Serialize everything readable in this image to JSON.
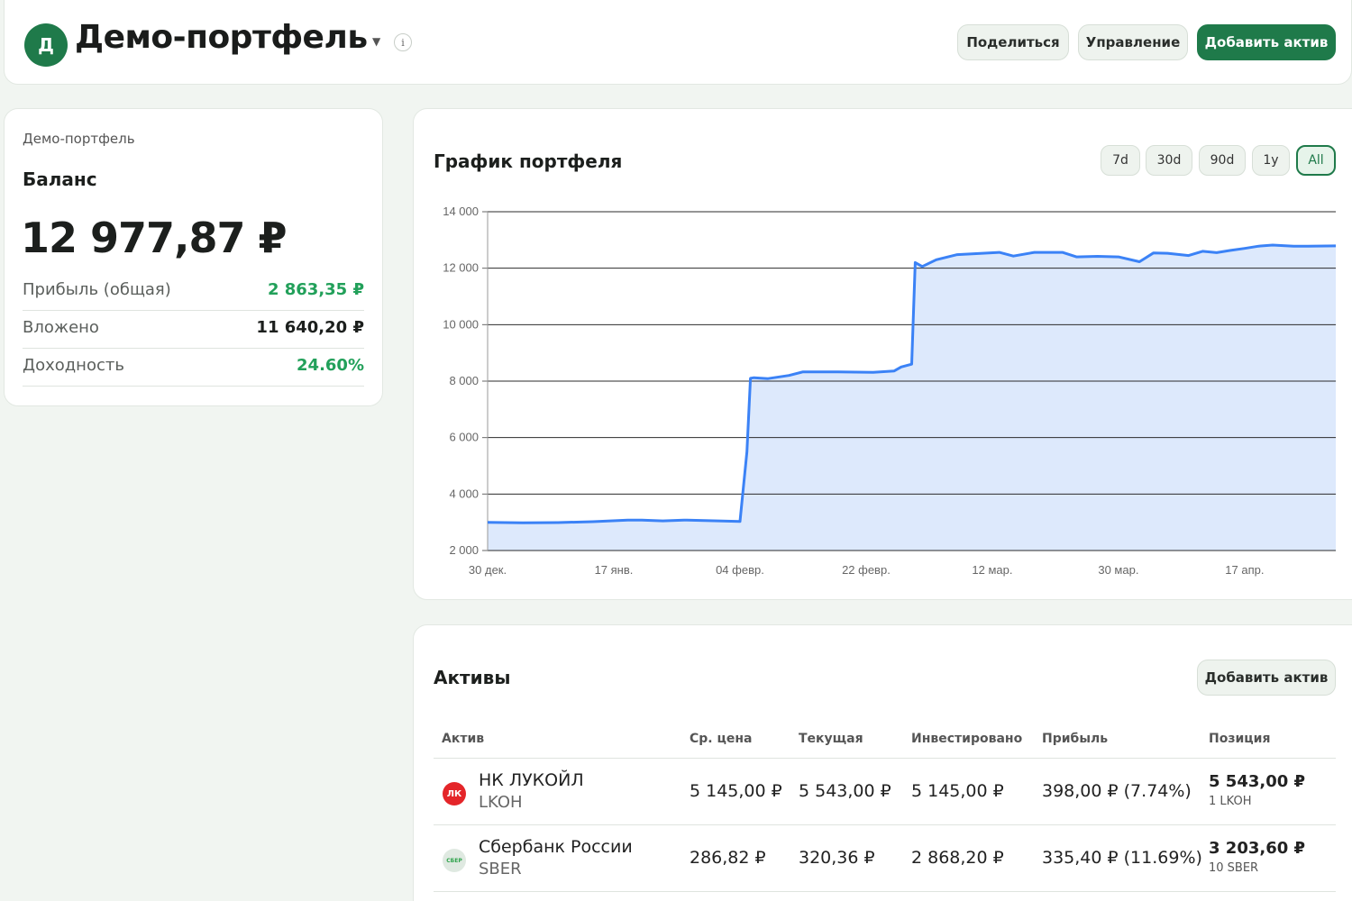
{
  "header": {
    "avatar_letter": "Д",
    "title": "Демо-портфель",
    "caret": "▼",
    "info": "i",
    "share_label": "Поделиться",
    "manage_label": "Управление",
    "add_asset_label": "Добавить актив"
  },
  "balance": {
    "portfolio_name": "Демо-портфель",
    "label": "Баланс",
    "value": "12 977,87 ₽",
    "rows": [
      {
        "label": "Прибыль (общая)",
        "value": "2 863,35 ₽",
        "color": "#22a05a"
      },
      {
        "label": "Вложено",
        "value": "11 640,20 ₽",
        "color": "#1c1f1d"
      },
      {
        "label": "Доходность",
        "value": "24.60%",
        "color": "#22a05a"
      }
    ]
  },
  "chart_section": {
    "title": "График портфеля",
    "ranges": [
      "7d",
      "30d",
      "90d",
      "1y",
      "All"
    ],
    "active_range": "All"
  },
  "chart_data": {
    "type": "area",
    "title": "График портфеля",
    "xlabel": "",
    "ylabel": "",
    "ylim": [
      2000,
      14000
    ],
    "yticks": [
      2000,
      4000,
      6000,
      8000,
      10000,
      12000,
      14000
    ],
    "ytick_labels": [
      "2 000",
      "4 000",
      "6 000",
      "8 000",
      "10 000",
      "12 000",
      "14 000"
    ],
    "xticks": [
      "30 дек.",
      "17 янв.",
      "04 февр.",
      "22 февр.",
      "12 мар.",
      "30 мар.",
      "17 апр."
    ],
    "x_tick_days": [
      0,
      18,
      36,
      54,
      72,
      90,
      108
    ],
    "grid": true,
    "color": "#3b82f6",
    "fill": "#dde9fc",
    "x_days": [
      0,
      5,
      10,
      15,
      20,
      22,
      25,
      28,
      31,
      36,
      37,
      37.5,
      38,
      40,
      43,
      45,
      50,
      55,
      58,
      59,
      60.5,
      61,
      62,
      64,
      67,
      70,
      73,
      75,
      78,
      82,
      84,
      87,
      90,
      93,
      95,
      97,
      100,
      102,
      104,
      106,
      108,
      110,
      112,
      115,
      117,
      121
    ],
    "values": [
      3000,
      2980,
      2990,
      3020,
      3080,
      3080,
      3050,
      3080,
      3060,
      3030,
      5500,
      8100,
      8120,
      8090,
      8200,
      8330,
      8330,
      8310,
      8360,
      8500,
      8600,
      12200,
      12060,
      12300,
      12480,
      12520,
      12560,
      12430,
      12560,
      12560,
      12400,
      12420,
      12400,
      12230,
      12540,
      12530,
      12450,
      12600,
      12550,
      12630,
      12700,
      12780,
      12820,
      12780,
      12780,
      12790
    ]
  },
  "assets": {
    "title": "Активы",
    "add_label": "Добавить актив",
    "columns": [
      "Актив",
      "Ср. цена",
      "Текущая",
      "Инвестировано",
      "Прибыль",
      "Позиция"
    ],
    "rows": [
      {
        "logo_text": "ЛК",
        "logo_icon": "lukoil-logo",
        "name": "НК ЛУКОЙЛ",
        "ticker": "LKOH",
        "avg_price": "5 145,00 ₽",
        "current": "5 543,00 ₽",
        "invested": "5 145,00 ₽",
        "profit": "398,00 ₽ (7.74%)",
        "position": "5 543,00 ₽",
        "position_qty": "1 LKOH"
      },
      {
        "logo_text": "СБЕР",
        "logo_icon": "sber-logo",
        "name": "Сбербанк России",
        "ticker": "SBER",
        "avg_price": "286,82 ₽",
        "current": "320,36 ₽",
        "invested": "2 868,20 ₽",
        "profit": "335,40 ₽ (11.69%)",
        "position": "3 203,60 ₽",
        "position_qty": "10 SBER"
      }
    ]
  }
}
